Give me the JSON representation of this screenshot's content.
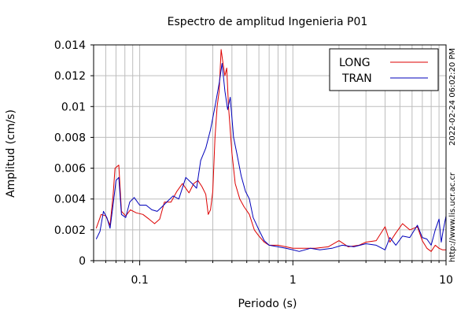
{
  "chart_data": {
    "type": "line",
    "title": "Espectro de amplitud Ingenieria P01",
    "xlabel": "Periodo (s)",
    "ylabel": "Amplitud (cm/s)",
    "x_scale": "log",
    "xlim": [
      0.05,
      10
    ],
    "ylim": [
      0,
      0.014
    ],
    "grid": true,
    "legend_position": "top-right",
    "x_ticks": [
      {
        "value": 0.1,
        "label": "0.1"
      },
      {
        "value": 1,
        "label": "1"
      },
      {
        "value": 10,
        "label": "10"
      }
    ],
    "y_ticks": [
      {
        "value": 0,
        "label": "0"
      },
      {
        "value": 0.002,
        "label": "0.002"
      },
      {
        "value": 0.004,
        "label": "0.004"
      },
      {
        "value": 0.006,
        "label": "0.006"
      },
      {
        "value": 0.008,
        "label": "0.008"
      },
      {
        "value": 0.01,
        "label": "0.01"
      },
      {
        "value": 0.012,
        "label": "0.012"
      },
      {
        "value": 0.014,
        "label": "0.014"
      }
    ],
    "series": [
      {
        "name": "LONG",
        "color": "#dd0000",
        "points": [
          [
            0.052,
            0.0021
          ],
          [
            0.056,
            0.003
          ],
          [
            0.06,
            0.0029
          ],
          [
            0.064,
            0.0023
          ],
          [
            0.067,
            0.0042
          ],
          [
            0.069,
            0.006
          ],
          [
            0.073,
            0.0062
          ],
          [
            0.076,
            0.0032
          ],
          [
            0.081,
            0.0029
          ],
          [
            0.087,
            0.0033
          ],
          [
            0.095,
            0.0031
          ],
          [
            0.105,
            0.003
          ],
          [
            0.115,
            0.0027
          ],
          [
            0.125,
            0.0024
          ],
          [
            0.135,
            0.0027
          ],
          [
            0.145,
            0.0038
          ],
          [
            0.16,
            0.0038
          ],
          [
            0.175,
            0.0045
          ],
          [
            0.19,
            0.005
          ],
          [
            0.21,
            0.0044
          ],
          [
            0.225,
            0.005
          ],
          [
            0.24,
            0.0052
          ],
          [
            0.255,
            0.0048
          ],
          [
            0.27,
            0.0043
          ],
          [
            0.28,
            0.003
          ],
          [
            0.29,
            0.0033
          ],
          [
            0.3,
            0.0045
          ],
          [
            0.31,
            0.008
          ],
          [
            0.32,
            0.01
          ],
          [
            0.33,
            0.011
          ],
          [
            0.34,
            0.0137
          ],
          [
            0.35,
            0.0128
          ],
          [
            0.36,
            0.012
          ],
          [
            0.37,
            0.0125
          ],
          [
            0.38,
            0.01
          ],
          [
            0.4,
            0.007
          ],
          [
            0.42,
            0.005
          ],
          [
            0.45,
            0.004
          ],
          [
            0.48,
            0.0035
          ],
          [
            0.52,
            0.003
          ],
          [
            0.56,
            0.002
          ],
          [
            0.6,
            0.0016
          ],
          [
            0.65,
            0.0012
          ],
          [
            0.7,
            0.001
          ],
          [
            0.8,
            0.001
          ],
          [
            0.9,
            0.0009
          ],
          [
            1.0,
            0.0008
          ],
          [
            1.2,
            0.0008
          ],
          [
            1.4,
            0.0008
          ],
          [
            1.7,
            0.0009
          ],
          [
            2.0,
            0.0013
          ],
          [
            2.3,
            0.0009
          ],
          [
            2.7,
            0.001
          ],
          [
            3.0,
            0.0012
          ],
          [
            3.5,
            0.0013
          ],
          [
            4.0,
            0.0022
          ],
          [
            4.3,
            0.0012
          ],
          [
            4.7,
            0.0018
          ],
          [
            5.2,
            0.0024
          ],
          [
            5.8,
            0.002
          ],
          [
            6.5,
            0.0022
          ],
          [
            7.0,
            0.0013
          ],
          [
            7.5,
            0.0008
          ],
          [
            8.0,
            0.0006
          ],
          [
            8.5,
            0.001
          ],
          [
            9.0,
            0.0008
          ],
          [
            9.5,
            0.0007
          ],
          [
            10.0,
            0.0007
          ]
        ]
      },
      {
        "name": "TRAN",
        "color": "#0000bb",
        "points": [
          [
            0.052,
            0.0014
          ],
          [
            0.055,
            0.0019
          ],
          [
            0.058,
            0.0032
          ],
          [
            0.061,
            0.0028
          ],
          [
            0.064,
            0.0021
          ],
          [
            0.067,
            0.0036
          ],
          [
            0.07,
            0.0052
          ],
          [
            0.073,
            0.0054
          ],
          [
            0.076,
            0.003
          ],
          [
            0.081,
            0.0028
          ],
          [
            0.086,
            0.0038
          ],
          [
            0.092,
            0.0041
          ],
          [
            0.1,
            0.0036
          ],
          [
            0.11,
            0.0036
          ],
          [
            0.12,
            0.0033
          ],
          [
            0.13,
            0.0032
          ],
          [
            0.14,
            0.0035
          ],
          [
            0.15,
            0.0038
          ],
          [
            0.165,
            0.0042
          ],
          [
            0.18,
            0.004
          ],
          [
            0.2,
            0.0054
          ],
          [
            0.22,
            0.005
          ],
          [
            0.235,
            0.0047
          ],
          [
            0.25,
            0.0065
          ],
          [
            0.27,
            0.0073
          ],
          [
            0.29,
            0.0085
          ],
          [
            0.31,
            0.01
          ],
          [
            0.33,
            0.0115
          ],
          [
            0.345,
            0.0128
          ],
          [
            0.36,
            0.011
          ],
          [
            0.375,
            0.0098
          ],
          [
            0.39,
            0.0106
          ],
          [
            0.41,
            0.008
          ],
          [
            0.43,
            0.007
          ],
          [
            0.46,
            0.0055
          ],
          [
            0.49,
            0.0045
          ],
          [
            0.52,
            0.004
          ],
          [
            0.55,
            0.0028
          ],
          [
            0.6,
            0.002
          ],
          [
            0.65,
            0.0013
          ],
          [
            0.7,
            0.001
          ],
          [
            0.8,
            0.0009
          ],
          [
            0.9,
            0.0008
          ],
          [
            1.0,
            0.0007
          ],
          [
            1.1,
            0.0006
          ],
          [
            1.3,
            0.0008
          ],
          [
            1.5,
            0.0007
          ],
          [
            1.8,
            0.0008
          ],
          [
            2.1,
            0.001
          ],
          [
            2.5,
            0.0009
          ],
          [
            3.0,
            0.0011
          ],
          [
            3.5,
            0.001
          ],
          [
            4.0,
            0.0007
          ],
          [
            4.3,
            0.0015
          ],
          [
            4.7,
            0.001
          ],
          [
            5.2,
            0.0016
          ],
          [
            5.8,
            0.0015
          ],
          [
            6.5,
            0.0023
          ],
          [
            7.0,
            0.0015
          ],
          [
            7.5,
            0.0014
          ],
          [
            8.0,
            0.001
          ],
          [
            8.5,
            0.002
          ],
          [
            9.0,
            0.0027
          ],
          [
            9.3,
            0.0012
          ],
          [
            9.6,
            0.002
          ],
          [
            10.0,
            0.0029
          ]
        ]
      }
    ]
  },
  "side_text": {
    "timestamp": "2022-02-24 06:02:20 PM",
    "url": "http://www.lis.ucr.ac.cr"
  }
}
